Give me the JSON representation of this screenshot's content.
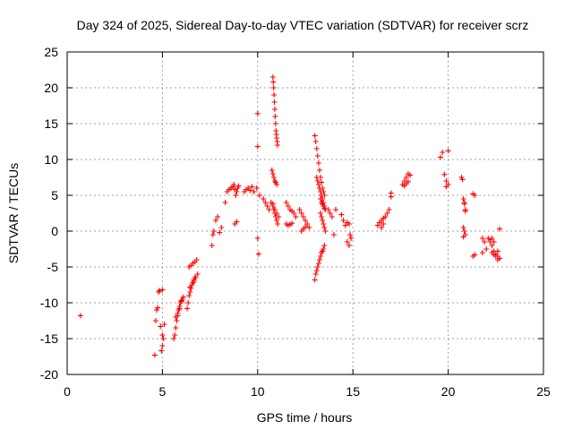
{
  "chart_data": {
    "type": "scatter",
    "title": "Day 324 of 2025, Sidereal Day-to-day VTEC variation (SDTVAR) for receiver scrz",
    "xlabel": "GPS time / hours",
    "ylabel": "SDTVAR / TECUs",
    "xlim": [
      0,
      25
    ],
    "ylim": [
      -20,
      25
    ],
    "xticks": [
      "0",
      "5",
      "10",
      "15",
      "20",
      "25"
    ],
    "yticks": [
      "-20",
      "-15",
      "-10",
      "-5",
      "0",
      "5",
      "10",
      "15",
      "20",
      "25"
    ],
    "grid": true,
    "marker": "+",
    "color": "#ff0000",
    "series": [
      {
        "name": "SDTVAR",
        "x": [
          0.7,
          4.6,
          4.65,
          4.7,
          4.75,
          4.8,
          4.85,
          4.9,
          5.0,
          5.0,
          4.95,
          5.05,
          5.1,
          5.0,
          5.6,
          5.65,
          5.7,
          5.75,
          5.8,
          5.85,
          5.9,
          5.95,
          6.0,
          6.05,
          6.1,
          5.7,
          5.8,
          5.9,
          6.0,
          6.3,
          6.35,
          6.4,
          6.45,
          6.5,
          6.55,
          6.6,
          6.65,
          6.7,
          6.4,
          6.5,
          6.6,
          6.7,
          6.8,
          6.45,
          6.55,
          6.65,
          6.75,
          6.85,
          7.6,
          7.65,
          7.7,
          7.8,
          7.9,
          8.0,
          8.1,
          8.3,
          8.4,
          8.5,
          8.6,
          8.7,
          8.75,
          8.8,
          8.85,
          8.9,
          8.95,
          9.0,
          8.8,
          8.9,
          9.3,
          9.4,
          9.5,
          9.6,
          9.7,
          9.8,
          9.95,
          10.0,
          10.0,
          10.0,
          10.05,
          10.1,
          10.3,
          10.4,
          10.5,
          10.6,
          10.75,
          10.8,
          10.85,
          10.9,
          10.95,
          11.0,
          10.8,
          10.85,
          10.9,
          10.95,
          11.0,
          11.05,
          10.8,
          10.82,
          10.84,
          10.86,
          10.88,
          10.9,
          10.92,
          10.94,
          10.96,
          10.98,
          11.0,
          11.02,
          11.04,
          10.7,
          10.8,
          10.9,
          11.0,
          11.1,
          11.5,
          11.6,
          11.7,
          11.8,
          11.9,
          12.0,
          11.5,
          11.6,
          11.7,
          11.8,
          12.2,
          12.3,
          12.4,
          12.5,
          12.6,
          12.7,
          12.3,
          12.4,
          12.5,
          13.0,
          13.05,
          13.1,
          13.15,
          13.2,
          13.25,
          13.3,
          13.35,
          13.4,
          13.45,
          13.5,
          13.3,
          13.35,
          13.4,
          13.45,
          13.5,
          13.0,
          13.05,
          13.1,
          13.15,
          13.2,
          13.25,
          13.3,
          13.35,
          13.4,
          13.45,
          13.5,
          13.3,
          13.35,
          13.4,
          13.45,
          13.5,
          13.55,
          13.1,
          13.15,
          13.2,
          13.25,
          13.3,
          13.35,
          13.4,
          13.45,
          13.5,
          13.55,
          13.7,
          13.8,
          13.9,
          14.0,
          14.1,
          14.4,
          14.5,
          14.6,
          14.7,
          14.8,
          14.85,
          14.9,
          14.7,
          14.8,
          16.3,
          16.4,
          16.5,
          16.6,
          16.7,
          16.8,
          16.9,
          17.0,
          17.0,
          16.5,
          16.6,
          17.6,
          17.7,
          17.8,
          17.9,
          18.0,
          17.7,
          17.8,
          17.9,
          19.6,
          19.7,
          19.8,
          19.9,
          20.0,
          20.0,
          19.9,
          20.7,
          20.75,
          20.8,
          20.85,
          20.9,
          20.8,
          20.85,
          20.9,
          20.8,
          20.85,
          20.9,
          21.3,
          21.4,
          21.3,
          21.4,
          21.8,
          21.9,
          22.0,
          21.8,
          22.1,
          22.2,
          22.3,
          22.4,
          22.5,
          22.6,
          22.7,
          22.3,
          22.4,
          22.5,
          22.6,
          22.2,
          22.3,
          22.4,
          22.7,
          22.6
        ],
        "y": [
          -11.8,
          -17.3,
          -12.5,
          -11.0,
          -10.7,
          -8.5,
          -8.3,
          -13.3,
          -14.5,
          -16.0,
          -16.7,
          -15.0,
          -13.0,
          -8.2,
          -15.0,
          -14.5,
          -13.5,
          -12.5,
          -11.5,
          -11.0,
          -10.5,
          -10.0,
          -9.8,
          -9.5,
          -9.2,
          -12.0,
          -11.8,
          -10.8,
          -9.7,
          -10.8,
          -10.0,
          -9.0,
          -8.5,
          -8.0,
          -7.5,
          -7.2,
          -6.8,
          -6.5,
          -5.0,
          -4.8,
          -4.5,
          -4.3,
          -4.0,
          -7.8,
          -7.5,
          -7.0,
          -6.5,
          -6.0,
          -2.0,
          -0.5,
          0.0,
          1.5,
          2.0,
          -0.2,
          0.5,
          4.0,
          5.5,
          5.8,
          6.0,
          6.2,
          6.5,
          5.8,
          5.0,
          5.5,
          6.0,
          6.3,
          1.0,
          1.3,
          5.5,
          5.8,
          6.0,
          5.7,
          6.2,
          5.5,
          6.0,
          16.4,
          11.8,
          -1.0,
          -3.2,
          5.0,
          4.5,
          4.0,
          3.5,
          3.0,
          8.5,
          8.0,
          7.5,
          7.0,
          6.8,
          6.5,
          3.8,
          3.0,
          2.5,
          2.0,
          1.5,
          1.0,
          21.5,
          20.8,
          20.0,
          19.0,
          18.0,
          17.0,
          16.0,
          15.0,
          14.0,
          13.5,
          13.0,
          12.5,
          12.0,
          4.0,
          3.5,
          3.0,
          2.5,
          2.0,
          4.0,
          3.5,
          3.0,
          2.8,
          2.5,
          2.0,
          1.0,
          0.8,
          0.9,
          1.1,
          3.0,
          2.5,
          2.0,
          1.5,
          1.0,
          0.5,
          0.0,
          0.3,
          0.6,
          13.3,
          12.5,
          11.5,
          10.5,
          9.5,
          8.5,
          7.5,
          6.8,
          6.0,
          5.5,
          5.0,
          4.5,
          4.0,
          3.8,
          3.5,
          3.2,
          -6.8,
          -6.0,
          -5.5,
          -5.0,
          -4.5,
          -4.0,
          -3.5,
          -3.0,
          -2.8,
          -2.5,
          -2.0,
          2.5,
          2.0,
          1.5,
          1.0,
          0.5,
          0.0,
          7.5,
          7.0,
          6.5,
          6.0,
          5.5,
          5.0,
          4.5,
          4.0,
          3.5,
          3.0,
          3.0,
          2.5,
          2.0,
          -0.5,
          3.0,
          2.3,
          1.5,
          0.8,
          1.2,
          1.0,
          -0.5,
          -1.0,
          -1.5,
          -2.0,
          0.8,
          1.2,
          1.5,
          1.8,
          2.0,
          2.5,
          3.0,
          4.8,
          5.3,
          0.5,
          1.0,
          6.5,
          7.0,
          7.5,
          8.0,
          7.8,
          6.3,
          6.6,
          6.9,
          10.3,
          11.0,
          7.9,
          7.0,
          6.5,
          11.2,
          6.2,
          7.5,
          7.2,
          4.5,
          3.8,
          2.8,
          0.5,
          0.0,
          -0.5,
          -0.8,
          4.0,
          3.0,
          5.2,
          5.0,
          -3.5,
          -3.3,
          -1.0,
          -1.5,
          -2.5,
          -3.0,
          -1.0,
          -1.5,
          -2.0,
          -2.8,
          -3.2,
          -3.5,
          -3.8,
          -3.0,
          -3.3,
          -3.5,
          -2.8,
          -1.2,
          -1.0,
          -1.5,
          0.3,
          -4.0
        ]
      }
    ]
  }
}
